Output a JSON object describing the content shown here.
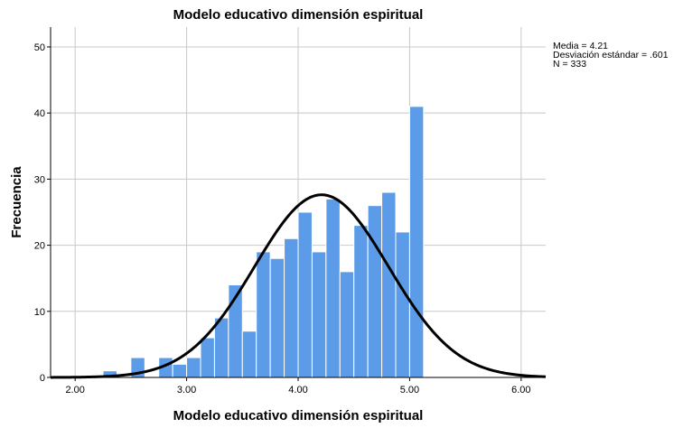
{
  "chart_data": {
    "type": "bar",
    "title": "Modelo educativo dimensión espiritual",
    "xlabel": "Modelo educativo dimensión espiritual",
    "ylabel": "Frecuencia",
    "xlim": [
      1.78,
      6.22
    ],
    "ylim": [
      0,
      53
    ],
    "x_ticks": [
      "2.00",
      "3.00",
      "4.00",
      "5.00",
      "6.00"
    ],
    "y_ticks": [
      "0",
      "10",
      "20",
      "30",
      "40",
      "50"
    ],
    "grid": true,
    "bin_width": 0.125,
    "bins": [
      {
        "start": 2.25,
        "value": 1
      },
      {
        "start": 2.5,
        "value": 3
      },
      {
        "start": 2.75,
        "value": 3
      },
      {
        "start": 2.875,
        "value": 2
      },
      {
        "start": 3.0,
        "value": 3
      },
      {
        "start": 3.125,
        "value": 6
      },
      {
        "start": 3.25,
        "value": 9
      },
      {
        "start": 3.375,
        "value": 14
      },
      {
        "start": 3.5,
        "value": 7
      },
      {
        "start": 3.625,
        "value": 19
      },
      {
        "start": 3.75,
        "value": 18
      },
      {
        "start": 3.875,
        "value": 21
      },
      {
        "start": 4.0,
        "value": 25
      },
      {
        "start": 4.125,
        "value": 19
      },
      {
        "start": 4.25,
        "value": 27
      },
      {
        "start": 4.375,
        "value": 16
      },
      {
        "start": 4.5,
        "value": 23
      },
      {
        "start": 4.625,
        "value": 26
      },
      {
        "start": 4.75,
        "value": 28
      },
      {
        "start": 4.875,
        "value": 22
      },
      {
        "start": 5.0,
        "value": 41
      }
    ],
    "normal_curve": {
      "mean": 4.21,
      "sd": 0.601,
      "n": 333
    },
    "stats_lines": [
      "Media = 4.21",
      "Desviación estándar = .601",
      "N = 333"
    ],
    "legend_position": "top-right",
    "colors": {
      "bar": "#5b9be8",
      "bar_edge": "#ffffff",
      "curve": "#000000",
      "grid": "#c8c8c8",
      "axis": "#000000"
    }
  }
}
